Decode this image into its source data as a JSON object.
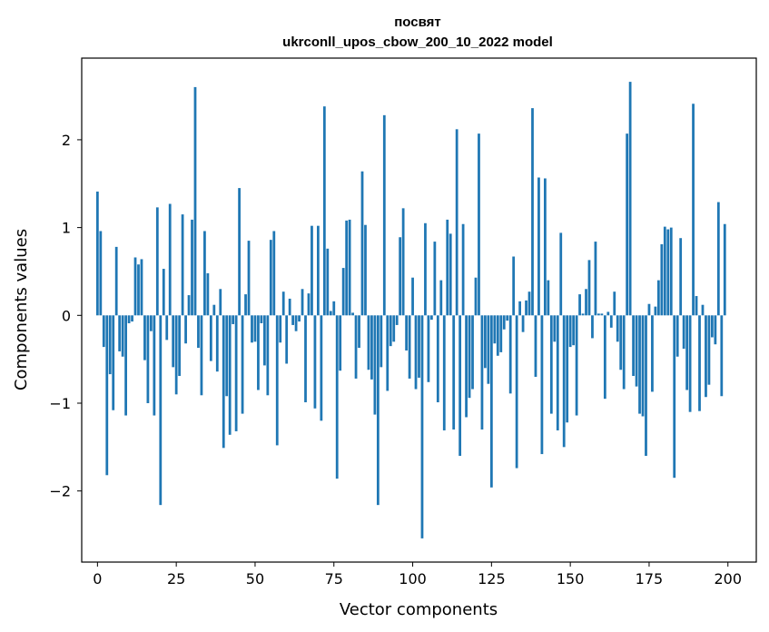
{
  "chart_data": {
    "type": "bar",
    "title": [
      "посвят",
      "ukrconll_upos_cbow_200_10_2022 model"
    ],
    "xlabel": "Vector components",
    "ylabel": "Components values",
    "xlim": [
      -5,
      209
    ],
    "ylim": [
      -2.81,
      2.93
    ],
    "xticks": [
      0,
      25,
      50,
      75,
      100,
      125,
      150,
      175,
      200
    ],
    "yticks": [
      -2,
      -1,
      0,
      1,
      2
    ],
    "ytick_labels": [
      "−2",
      "−1",
      "0",
      "1",
      "2"
    ],
    "bar_color": "#1f77b4",
    "grid": false,
    "values": [
      1.41,
      0.96,
      -0.36,
      -1.82,
      -0.67,
      -1.08,
      0.78,
      -0.41,
      -0.47,
      -1.14,
      -0.09,
      -0.07,
      0.66,
      0.58,
      0.64,
      -0.51,
      -1.0,
      -0.18,
      -1.14,
      1.23,
      -2.16,
      0.53,
      -0.28,
      1.27,
      -0.59,
      -0.9,
      -0.69,
      1.15,
      -0.32,
      0.23,
      1.09,
      2.6,
      -0.37,
      -0.91,
      0.96,
      0.48,
      -0.52,
      0.12,
      -0.64,
      0.3,
      -1.51,
      -0.92,
      -1.36,
      -0.1,
      -1.32,
      1.45,
      -1.12,
      0.24,
      0.85,
      -0.31,
      -0.3,
      -0.85,
      -0.09,
      -0.57,
      -0.91,
      0.86,
      0.96,
      -1.48,
      -0.31,
      0.27,
      -0.55,
      0.19,
      -0.11,
      -0.18,
      -0.07,
      0.3,
      -0.99,
      0.25,
      1.02,
      -1.06,
      1.02,
      -1.2,
      2.38,
      0.76,
      0.05,
      0.16,
      -1.86,
      -0.63,
      0.54,
      1.08,
      1.09,
      0.03,
      -0.72,
      -0.37,
      1.64,
      1.03,
      -0.62,
      -0.73,
      -1.13,
      -2.16,
      -0.59,
      2.28,
      -0.86,
      -0.35,
      -0.3,
      -0.11,
      0.89,
      1.22,
      -0.4,
      -0.72,
      0.43,
      -0.84,
      -0.71,
      -2.54,
      1.05,
      -0.76,
      -0.05,
      0.84,
      -0.99,
      0.4,
      -1.31,
      1.09,
      0.93,
      -1.3,
      2.12,
      -1.6,
      1.04,
      -1.16,
      -0.94,
      -0.84,
      0.43,
      2.07,
      -1.3,
      -0.6,
      -0.78,
      -1.96,
      -0.32,
      -0.46,
      -0.42,
      -0.16,
      -0.06,
      -0.89,
      0.67,
      -1.74,
      0.16,
      -0.19,
      0.17,
      0.27,
      2.36,
      -0.7,
      1.57,
      -1.58,
      1.56,
      0.4,
      -1.12,
      -0.3,
      -1.31,
      0.94,
      -1.5,
      -1.22,
      -0.36,
      -0.34,
      -1.14,
      0.24,
      0.02,
      0.3,
      0.63,
      -0.26,
      0.84,
      0.02,
      0.02,
      -0.95,
      0.04,
      -0.14,
      0.27,
      -0.3,
      -0.62,
      -0.84,
      2.07,
      2.66,
      -0.69,
      -0.81,
      -1.12,
      -1.15,
      -1.6,
      0.13,
      -0.87,
      0.1,
      0.4,
      0.81,
      1.01,
      0.98,
      1.0,
      -1.85,
      -0.47,
      0.88,
      -0.38,
      -0.85,
      -1.1,
      2.41,
      0.22,
      -1.09,
      0.12,
      -0.93,
      -0.79,
      -0.25,
      -0.33,
      1.29,
      -0.92,
      1.04
    ]
  }
}
